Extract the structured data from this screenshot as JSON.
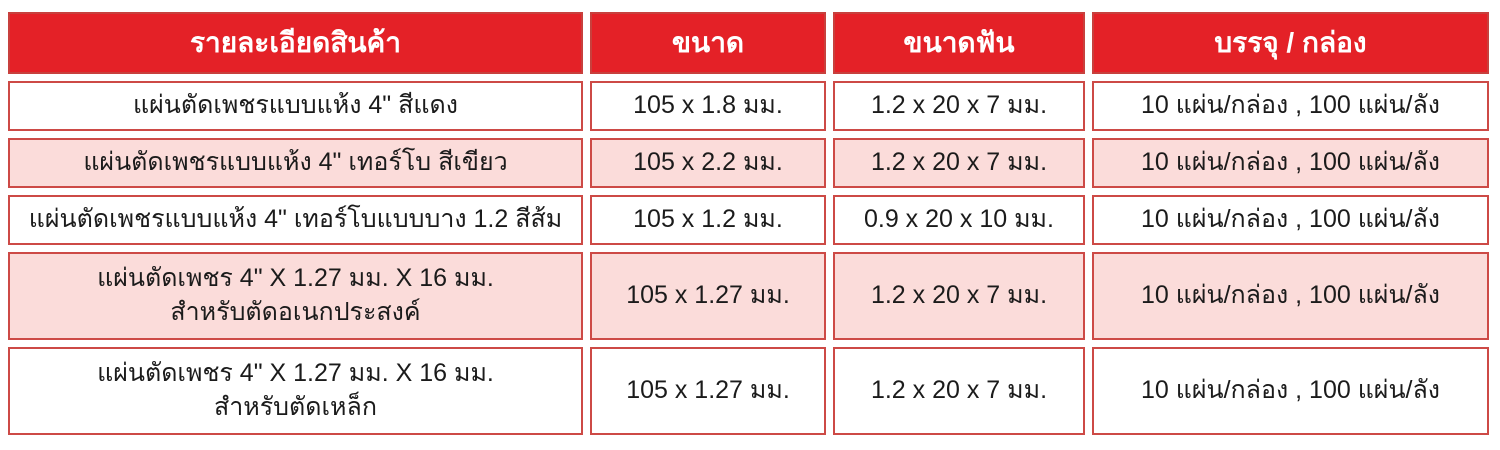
{
  "colors": {
    "header_red": "#e42127",
    "border_red": "#cd4a46",
    "row_pink": "#fbdcda"
  },
  "table": {
    "headers": [
      {
        "label": "รายละเอียดสินค้า"
      },
      {
        "label": "ขนาด"
      },
      {
        "label": "ขนาดฟัน"
      },
      {
        "label": "บรรจุ / กล่อง"
      }
    ],
    "rows": [
      {
        "product": "แผ่นตัดเพชรแบบแห้ง 4\" สีแดง",
        "size": "105 x 1.8 มม.",
        "teeth": "1.2 x 20 x 7 มม.",
        "packing": "10 แผ่น/กล่อง , 100 แผ่น/ลัง",
        "highlighted": false
      },
      {
        "product": "แผ่นตัดเพชรแบบแห้ง 4\" เทอร์โบ สีเขียว",
        "size": "105 x 2.2 มม.",
        "teeth": "1.2 x 20 x 7 มม.",
        "packing": "10 แผ่น/กล่อง , 100 แผ่น/ลัง",
        "highlighted": true
      },
      {
        "product": "แผ่นตัดเพชรแบบแห้ง 4\" เทอร์โบแบบบาง 1.2 สีส้ม",
        "size": "105 x 1.2 มม.",
        "teeth": "0.9 x 20 x 10 มม.",
        "packing": "10 แผ่น/กล่อง , 100 แผ่น/ลัง",
        "highlighted": false
      },
      {
        "product": "แผ่นตัดเพชร 4\" X 1.27 มม. X 16 มม.\nสำหรับตัดอเนกประสงค์",
        "size": "105 x 1.27 มม.",
        "teeth": "1.2 x 20 x 7 มม.",
        "packing": "10 แผ่น/กล่อง , 100 แผ่น/ลัง",
        "highlighted": true
      },
      {
        "product": "แผ่นตัดเพชร 4\" X 1.27 มม. X 16 มม.\nสำหรับตัดเหล็ก",
        "size": "105 x 1.27 มม.",
        "teeth": "1.2 x 20 x 7 มม.",
        "packing": "10 แผ่น/กล่อง , 100 แผ่น/ลัง",
        "highlighted": false
      }
    ]
  }
}
